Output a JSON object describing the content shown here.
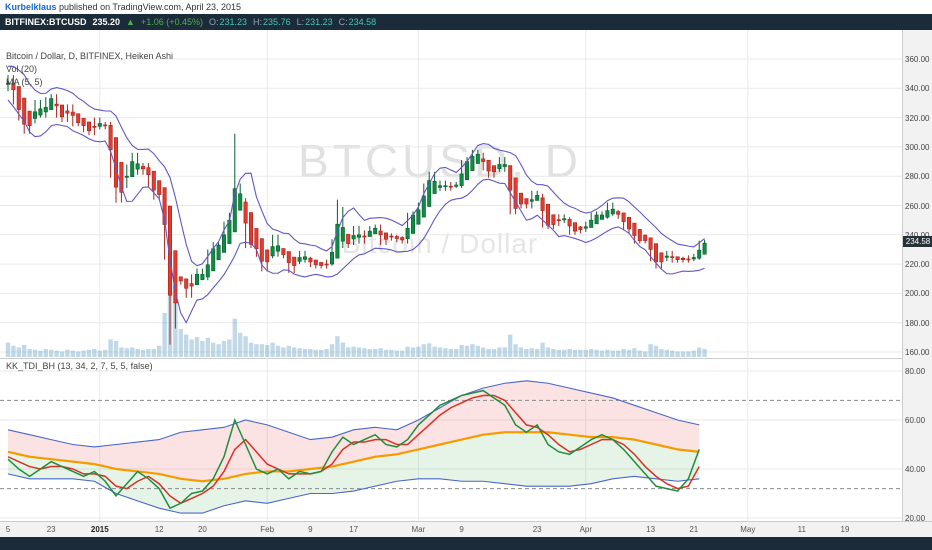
{
  "publish_bar": {
    "author": "Kurbelklaus",
    "suffix": " published on TradingView.com, April 23, 2015"
  },
  "quote_bar": {
    "symbol": "BITFINEX:BTCUSD",
    "last": "235.20",
    "arrow": "▲",
    "change": "+1.06 (+0.45%)",
    "ohlc": [
      {
        "label": "O:",
        "value": "231.23"
      },
      {
        "label": "H:",
        "value": "235.76"
      },
      {
        "label": "L:",
        "value": "231.23"
      },
      {
        "label": "C:",
        "value": "234.58"
      }
    ]
  },
  "price_pane": {
    "legend_main": "Bitcoin / Dollar, D, BITFINEX, Heiken Ashi",
    "legend_vol": "Vol (20)",
    "legend_ma": "MA (5, 5)",
    "watermark_line1": "BTCUSD, D",
    "watermark_line2": "Bitcoin / Dollar",
    "last_price_label": "234.58"
  },
  "indicator_pane": {
    "legend": "KK_TDI_BH (13, 34, 2, 7, 5, 5, false)"
  },
  "chart_data": {
    "type": "candlestick",
    "style": "heiken-ashi",
    "symbol": "BITFINEX:BTCUSD",
    "interval": "D",
    "title": "Bitcoin / Dollar",
    "price_axis": {
      "ticks": [
        360,
        340,
        320,
        300,
        280,
        260,
        240,
        220,
        200,
        180,
        160
      ],
      "format_decimals": 2
    },
    "last_price": 234.58,
    "first_open": 340,
    "closes": [
      347,
      331,
      320,
      311,
      318,
      330,
      322,
      332,
      334,
      322,
      319,
      327,
      316,
      317,
      312,
      310,
      318,
      314,
      315,
      281,
      264,
      274,
      286,
      294,
      283,
      287,
      275,
      266,
      269,
      225,
      178,
      209,
      208,
      199,
      211,
      215,
      211,
      228,
      233,
      233,
      247,
      253,
      273,
      263,
      233,
      234,
      227,
      217,
      226,
      238,
      227,
      226,
      216,
      222,
      227,
      223,
      220,
      219,
      219,
      221,
      235,
      257,
      233,
      235,
      244,
      236,
      241,
      244,
      245,
      235,
      239,
      238,
      237,
      236,
      253,
      254,
      260,
      273,
      281,
      272,
      275,
      272,
      274,
      274,
      289,
      291,
      296,
      294,
      286,
      281,
      285,
      291,
      285,
      256,
      260,
      262,
      260,
      268,
      266,
      247,
      246,
      248,
      252,
      250,
      242,
      243,
      244,
      247,
      253,
      254,
      253,
      260,
      255,
      253,
      245,
      243,
      236,
      236,
      236,
      224,
      219,
      224,
      227,
      223,
      223,
      223,
      224,
      225,
      234,
      234.6
    ],
    "wick_overrides": {
      "30": {
        "low": 165
      },
      "42": {
        "high": 309
      },
      "61": {
        "high": 264
      }
    },
    "volume_rel": [
      18,
      14,
      12,
      15,
      10,
      9,
      8,
      10,
      9,
      8,
      7,
      9,
      8,
      7,
      8,
      9,
      10,
      8,
      9,
      22,
      20,
      12,
      11,
      12,
      10,
      9,
      10,
      10,
      14,
      55,
      100,
      70,
      35,
      28,
      22,
      25,
      20,
      24,
      18,
      16,
      20,
      22,
      48,
      30,
      26,
      18,
      16,
      16,
      15,
      18,
      14,
      12,
      14,
      12,
      11,
      10,
      10,
      9,
      9,
      10,
      16,
      26,
      18,
      12,
      13,
      12,
      11,
      10,
      10,
      11,
      9,
      9,
      8,
      8,
      13,
      12,
      13,
      16,
      17,
      13,
      12,
      11,
      10,
      10,
      15,
      14,
      16,
      14,
      12,
      10,
      10,
      12,
      12,
      28,
      16,
      12,
      10,
      11,
      10,
      18,
      12,
      10,
      9,
      9,
      10,
      9,
      9,
      9,
      10,
      9,
      8,
      9,
      8,
      8,
      10,
      9,
      11,
      8,
      7,
      16,
      14,
      10,
      9,
      8,
      7,
      7,
      7,
      8,
      12,
      10
    ],
    "envelope": {
      "window": 4,
      "offset": 6
    },
    "month_grid_days": [
      17,
      48,
      76,
      107,
      137
    ],
    "time_axis": [
      {
        "label": "5",
        "day": 0
      },
      {
        "label": "23",
        "day": 8
      },
      {
        "label": "2015",
        "day": 17,
        "bold": true
      },
      {
        "label": "12",
        "day": 28
      },
      {
        "label": "20",
        "day": 36
      },
      {
        "label": "Feb",
        "day": 48
      },
      {
        "label": "9",
        "day": 56
      },
      {
        "label": "17",
        "day": 64
      },
      {
        "label": "Mar",
        "day": 76
      },
      {
        "label": "9",
        "day": 84
      },
      {
        "label": "23",
        "day": 98
      },
      {
        "label": "Apr",
        "day": 107
      },
      {
        "label": "13",
        "day": 119
      },
      {
        "label": "21",
        "day": 127
      },
      {
        "label": "May",
        "day": 137
      },
      {
        "label": "11",
        "day": 147
      },
      {
        "label": "19",
        "day": 155
      }
    ],
    "tdi": {
      "axis_ticks": [
        80,
        60,
        40,
        20
      ],
      "dashed_levels": [
        68,
        32
      ],
      "fast_step_days": 2,
      "rsi_green": [
        44,
        40,
        37,
        40,
        43,
        41,
        39,
        37,
        39,
        35,
        29,
        34,
        39,
        36,
        32,
        24,
        26,
        30,
        31,
        36,
        45,
        60,
        50,
        40,
        38,
        40,
        36,
        39,
        38,
        39,
        47,
        53,
        50,
        52,
        54,
        50,
        49,
        52,
        58,
        62,
        66,
        68,
        70,
        71,
        72,
        69,
        66,
        58,
        55,
        58,
        50,
        47,
        46,
        49,
        52,
        54,
        52,
        48,
        43,
        38,
        33,
        32,
        31,
        36,
        48
      ],
      "signal_red": [
        45,
        43,
        41,
        40,
        41,
        41,
        40,
        38,
        38,
        37,
        33,
        32,
        35,
        37,
        34,
        29,
        26,
        28,
        30,
        33,
        39,
        48,
        52,
        47,
        42,
        40,
        38,
        38,
        38,
        39,
        42,
        48,
        51,
        51,
        52,
        52,
        50,
        50,
        54,
        58,
        62,
        65,
        67,
        69,
        70,
        70,
        68,
        63,
        58,
        57,
        54,
        50,
        47,
        48,
        50,
        52,
        52,
        50,
        46,
        41,
        37,
        34,
        32,
        33,
        41
      ],
      "band_step_days": 4,
      "mid_orange": [
        47,
        45,
        44,
        43,
        42,
        40,
        39,
        38,
        36,
        35,
        36,
        38,
        39,
        39,
        40,
        41,
        43,
        45,
        46,
        48,
        50,
        52,
        54,
        55,
        55,
        55,
        54,
        53,
        53,
        52,
        50,
        48,
        47
      ],
      "band_upper": [
        56,
        54,
        52,
        50,
        49,
        50,
        51,
        52,
        55,
        56,
        57,
        60,
        58,
        55,
        52,
        53,
        56,
        57,
        56,
        60,
        65,
        70,
        73,
        75,
        76,
        75,
        73,
        71,
        69,
        66,
        63,
        60,
        58
      ],
      "band_lower": [
        38,
        36,
        36,
        36,
        35,
        30,
        27,
        24,
        22,
        22,
        25,
        27,
        26,
        28,
        30,
        30,
        31,
        33,
        35,
        36,
        36,
        35,
        35,
        34,
        33,
        33,
        33,
        34,
        36,
        37,
        36,
        35,
        36
      ]
    },
    "colors": {
      "header_bg": "#1c2b3a",
      "up": "#0e8c43",
      "up_border": "#0a5c2e",
      "down": "#e23b30",
      "down_border": "#a8221a",
      "volume": "rgba(91,156,192,0.38)",
      "envelope": "#6157c8",
      "tdi_green": "#1e8e3e",
      "tdi_red": "#d93025",
      "tdi_orange": "#f59b00",
      "tdi_band": "#4a66c8",
      "fill_upper": "rgba(239,83,80,0.16)",
      "fill_lower": "rgba(102,187,106,0.16)",
      "grid": "#e9e9e9",
      "separator": "#cccccc",
      "accent_green": "#4caf50",
      "value_teal": "#45c5b5"
    }
  }
}
